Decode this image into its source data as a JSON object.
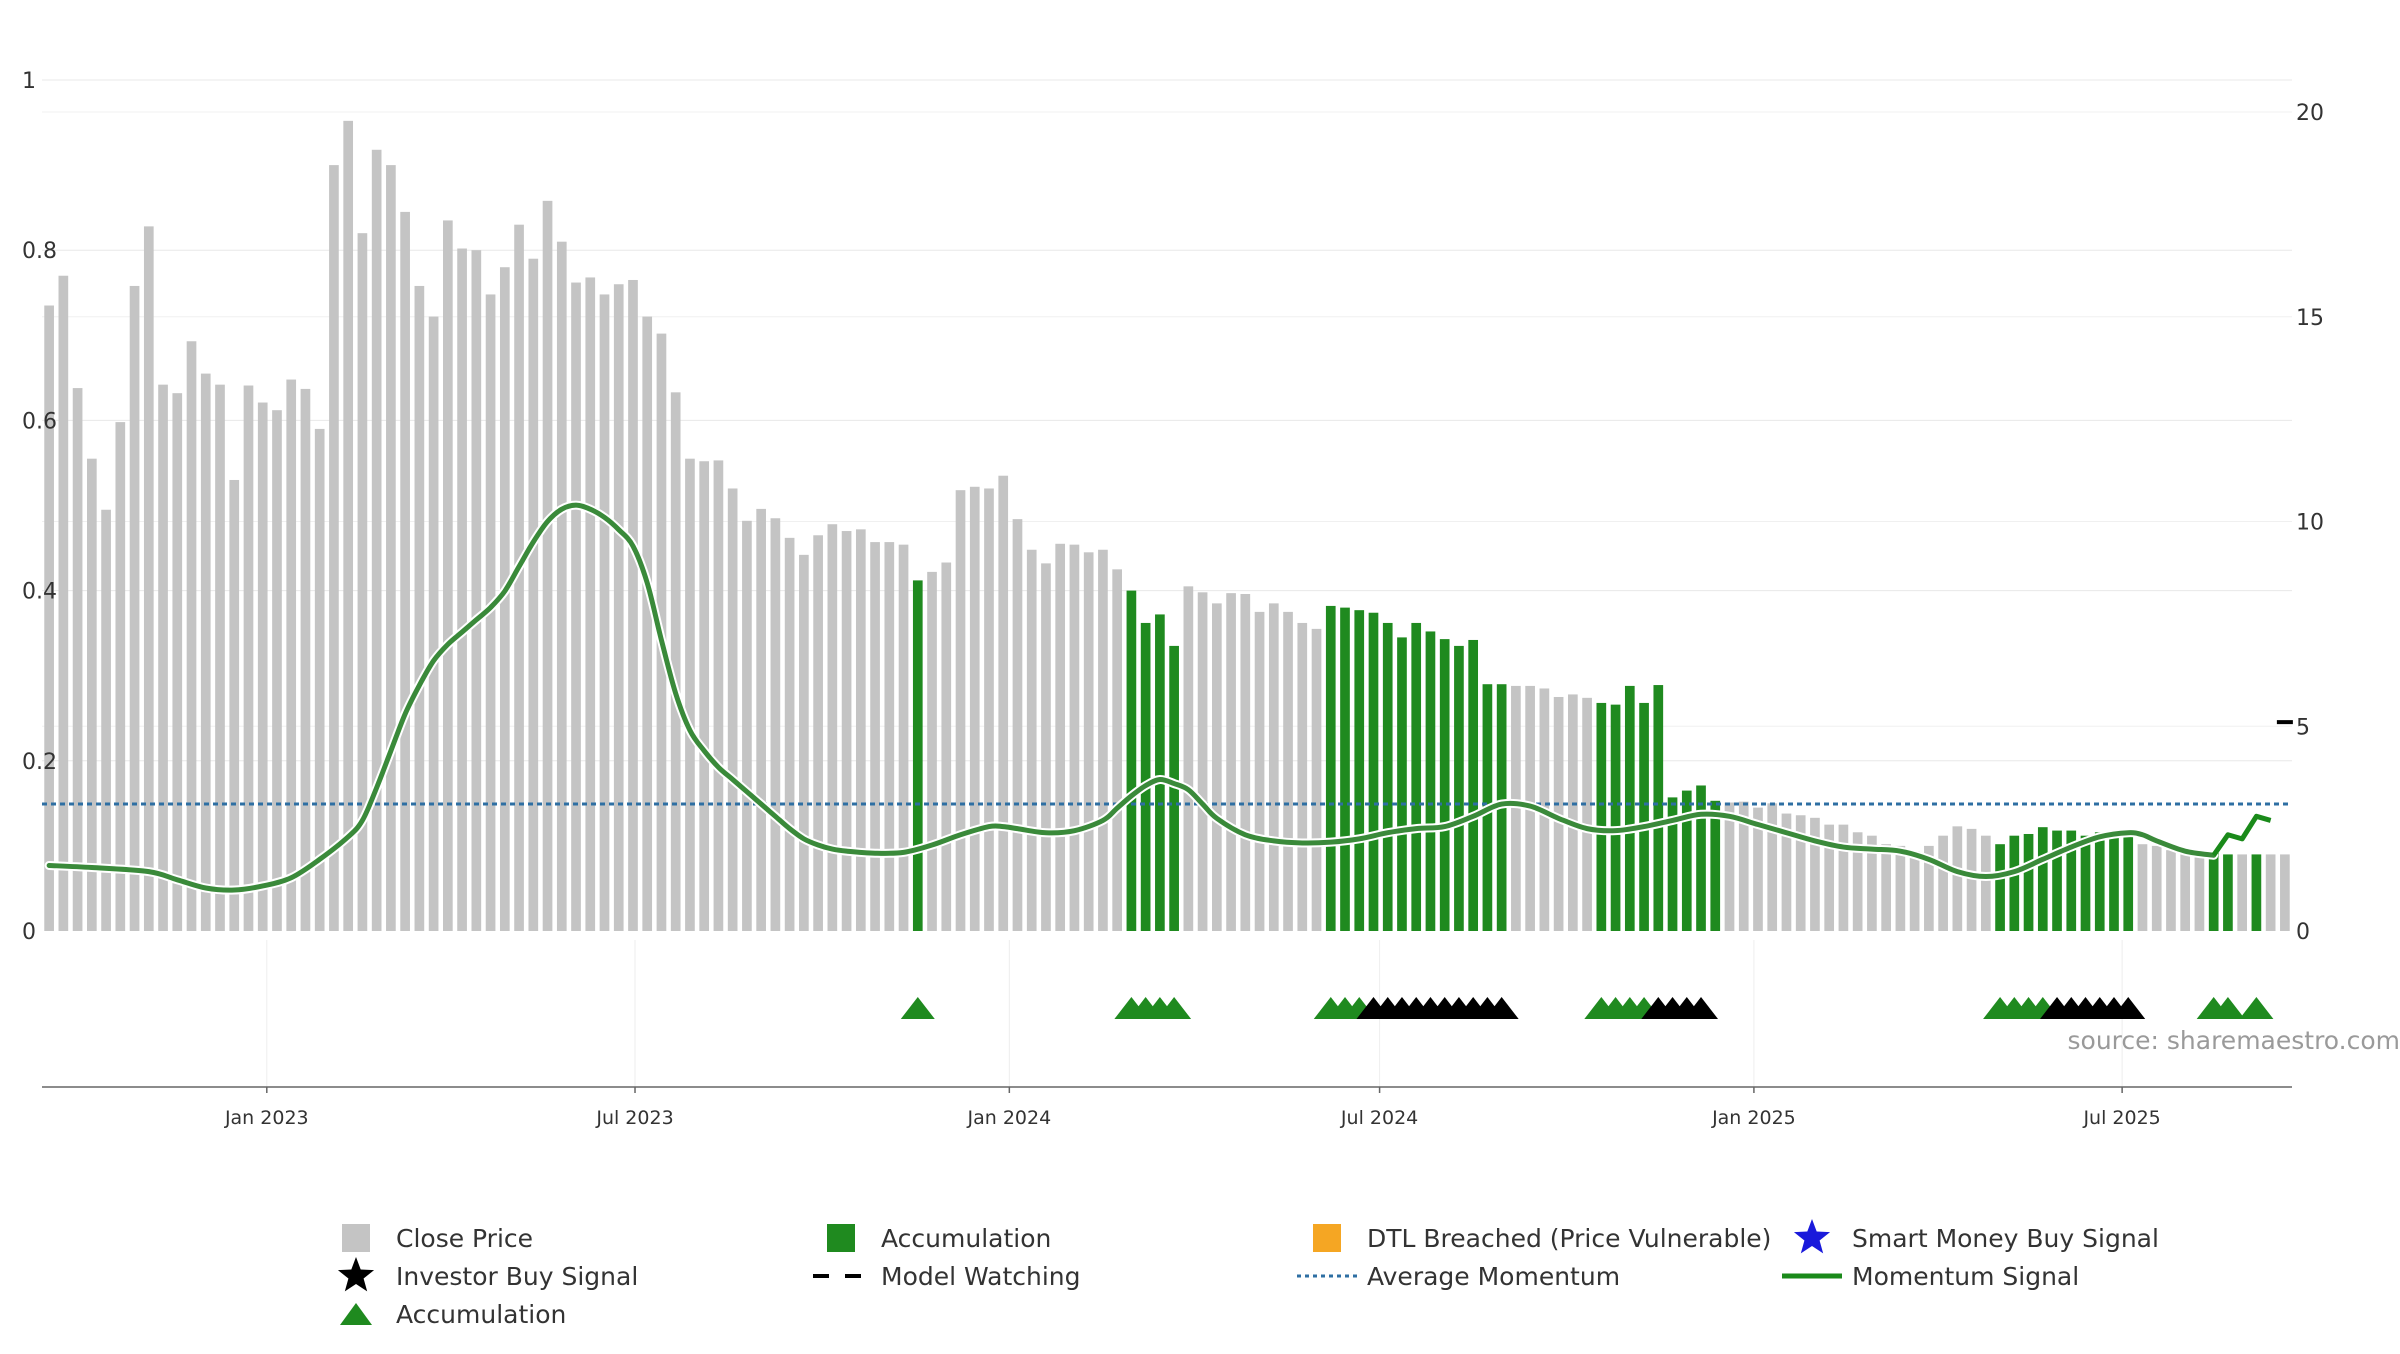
{
  "colors": {
    "close_price": "#c4c4c4",
    "accumulation": "#1f8a1f",
    "investor_signal": "#000000",
    "dtl_breached": "#f5a623",
    "smart_money": "#1a1adb",
    "average_momentum": "#2e6fa3",
    "momentum_line": "#3a8a3a",
    "momentum_signal": "#1a8a1a",
    "grid": "#e8e8e8"
  },
  "source": "source: sharemaestro.com",
  "legend": [
    {
      "label": "Close Price",
      "marker": "square",
      "color": "#c4c4c4"
    },
    {
      "label": "Accumulation",
      "marker": "square",
      "color": "#1f8a1f"
    },
    {
      "label": "DTL Breached (Price Vulnerable)",
      "marker": "square",
      "color": "#f5a623"
    },
    {
      "label": "Smart Money Buy Signal",
      "marker": "star",
      "color": "#1a1adb"
    },
    {
      "label": "Investor Buy Signal",
      "marker": "star",
      "color": "#000000"
    },
    {
      "label": "Model Watching",
      "marker": "dash",
      "color": "#000000"
    },
    {
      "label": "Average Momentum",
      "marker": "dotted-line",
      "color": "#2e6fa3"
    },
    {
      "label": "Momentum Signal",
      "marker": "line",
      "color": "#1a8a1a"
    },
    {
      "label": "Accumulation",
      "marker": "triangle",
      "color": "#1f8a1f"
    }
  ],
  "chart_data": {
    "type": "bar",
    "left_axis": {
      "ticks": [
        0,
        0.2,
        0.4,
        0.6,
        0.8,
        1
      ],
      "labels": [
        "0",
        "0.2",
        "0.4",
        "0.6",
        "0.8",
        "1"
      ],
      "range": [
        0,
        1
      ]
    },
    "right_axis": {
      "ticks": [
        0,
        5,
        10,
        15,
        20
      ],
      "labels": [
        "0",
        "5",
        "10",
        "15",
        "20"
      ],
      "range": [
        0,
        20
      ]
    },
    "x_axis": {
      "ticks": [
        "2023-01-01",
        "2023-07-01",
        "2024-01-01",
        "2024-07-01",
        "2025-01-01",
        "2025-07-01"
      ],
      "labels": [
        "Jan 2023",
        "Jul 2023",
        "Jan 2024",
        "Jul 2024",
        "Jan 2025",
        "Jul 2025"
      ]
    },
    "weeks": {
      "start": "2022-09-16",
      "interval_days": 7,
      "count": 158
    },
    "close_price": [
      0.735,
      0.77,
      0.638,
      0.555,
      0.495,
      0.598,
      0.758,
      0.828,
      0.642,
      0.632,
      0.693,
      0.655,
      0.642,
      0.53,
      0.641,
      0.621,
      0.612,
      0.648,
      0.637,
      0.59,
      0.9,
      0.952,
      0.82,
      0.918,
      0.9,
      0.845,
      0.758,
      0.722,
      0.835,
      0.802,
      0.8,
      0.748,
      0.78,
      0.83,
      0.79,
      0.858,
      0.81,
      0.762,
      0.768,
      0.748,
      0.76,
      0.765,
      0.722,
      0.702,
      0.633,
      0.555,
      0.552,
      0.553,
      0.52,
      0.482,
      0.496,
      0.485,
      0.462,
      0.442,
      0.465,
      0.478,
      0.47,
      0.472,
      0.457,
      0.457,
      0.454,
      0.412,
      0.422,
      0.433,
      0.518,
      0.522,
      0.52,
      0.535,
      0.484,
      0.448,
      0.432,
      0.455,
      0.454,
      0.445,
      0.448,
      0.425,
      0.4,
      0.362,
      0.372,
      0.335,
      0.405,
      0.398,
      0.385,
      0.397,
      0.396,
      0.375,
      0.385,
      0.375,
      0.362,
      0.355,
      0.382,
      0.38,
      0.377,
      0.374,
      0.362,
      0.345,
      0.362,
      0.352,
      0.343,
      0.335,
      0.342,
      0.29,
      0.29,
      0.288,
      0.288,
      0.285,
      0.275,
      0.278,
      0.274,
      0.268,
      0.266,
      0.288,
      0.268,
      0.289,
      0.157,
      0.165,
      0.171,
      0.153,
      0.151,
      0.152,
      0.145,
      0.15,
      0.138,
      0.136,
      0.133,
      0.125,
      0.125,
      0.116,
      0.112,
      0.102,
      0.1,
      0.094,
      0.1,
      0.112,
      0.123,
      0.12,
      0.112,
      0.102,
      0.112,
      0.114,
      0.122,
      0.118,
      0.118,
      0.112,
      0.116,
      0.118,
      0.114,
      0.102,
      0.1,
      0.095,
      0.092,
      0.092,
      0.093,
      0.09,
      0.09,
      0.09,
      0.09,
      0.09
    ],
    "accumulation_weeks": [
      61,
      76,
      77,
      78,
      79,
      90,
      91,
      92,
      93,
      94,
      95,
      96,
      97,
      98,
      99,
      100,
      101,
      102,
      109,
      110,
      111,
      112,
      113,
      114,
      115,
      116,
      117,
      137,
      138,
      139,
      140,
      141,
      142,
      143,
      144,
      145,
      146,
      152,
      153,
      155
    ],
    "accumulation_triangle_weeks": [
      61,
      76,
      77,
      78,
      79,
      90,
      91,
      92,
      109,
      110,
      111,
      112,
      137,
      138,
      139,
      140,
      152,
      153,
      155
    ],
    "investor_signal_weeks": [
      93,
      94,
      95,
      96,
      97,
      98,
      99,
      100,
      101,
      102,
      113,
      114,
      115,
      116,
      141,
      142,
      143,
      144,
      145,
      146
    ],
    "momentum_line": {
      "points": [
        [
          0,
          1.6
        ],
        [
          3,
          1.55
        ],
        [
          7,
          1.45
        ],
        [
          9,
          1.25
        ],
        [
          11,
          1.05
        ],
        [
          13,
          1.0
        ],
        [
          15,
          1.1
        ],
        [
          17,
          1.3
        ],
        [
          19,
          1.75
        ],
        [
          21,
          2.3
        ],
        [
          22,
          2.7
        ],
        [
          23,
          3.5
        ],
        [
          24,
          4.4
        ],
        [
          25,
          5.3
        ],
        [
          26,
          6.0
        ],
        [
          27,
          6.6
        ],
        [
          28,
          7.0
        ],
        [
          29,
          7.3
        ],
        [
          30,
          7.6
        ],
        [
          31,
          7.9
        ],
        [
          32,
          8.3
        ],
        [
          33,
          8.9
        ],
        [
          34,
          9.5
        ],
        [
          35,
          10.0
        ],
        [
          36,
          10.3
        ],
        [
          37,
          10.4
        ],
        [
          38,
          10.3
        ],
        [
          39,
          10.1
        ],
        [
          40,
          9.8
        ],
        [
          41,
          9.4
        ],
        [
          42,
          8.5
        ],
        [
          43,
          7.1
        ],
        [
          44,
          5.8
        ],
        [
          45,
          4.9
        ],
        [
          46,
          4.4
        ],
        [
          47,
          4.0
        ],
        [
          48,
          3.7
        ],
        [
          49,
          3.4
        ],
        [
          50,
          3.1
        ],
        [
          51,
          2.8
        ],
        [
          52,
          2.5
        ],
        [
          53,
          2.25
        ],
        [
          54,
          2.1
        ],
        [
          55,
          2.0
        ],
        [
          56,
          1.95
        ],
        [
          58,
          1.9
        ],
        [
          60,
          1.92
        ],
        [
          62,
          2.1
        ],
        [
          64,
          2.35
        ],
        [
          66,
          2.55
        ],
        [
          67,
          2.55
        ],
        [
          68,
          2.5
        ],
        [
          70,
          2.4
        ],
        [
          72,
          2.45
        ],
        [
          74,
          2.7
        ],
        [
          75,
          3.0
        ],
        [
          76,
          3.3
        ],
        [
          77,
          3.55
        ],
        [
          78,
          3.7
        ],
        [
          79,
          3.6
        ],
        [
          80,
          3.45
        ],
        [
          81,
          3.1
        ],
        [
          82,
          2.75
        ],
        [
          84,
          2.35
        ],
        [
          86,
          2.2
        ],
        [
          88,
          2.15
        ],
        [
          90,
          2.17
        ],
        [
          92,
          2.25
        ],
        [
          94,
          2.4
        ],
        [
          96,
          2.5
        ],
        [
          98,
          2.55
        ],
        [
          100,
          2.8
        ],
        [
          102,
          3.1
        ],
        [
          104,
          3.05
        ],
        [
          106,
          2.75
        ],
        [
          108,
          2.5
        ],
        [
          110,
          2.45
        ],
        [
          112,
          2.55
        ],
        [
          114,
          2.7
        ],
        [
          116,
          2.85
        ],
        [
          118,
          2.8
        ],
        [
          120,
          2.6
        ],
        [
          122,
          2.4
        ],
        [
          124,
          2.2
        ],
        [
          126,
          2.05
        ],
        [
          128,
          2.0
        ],
        [
          130,
          1.95
        ],
        [
          132,
          1.75
        ],
        [
          134,
          1.45
        ],
        [
          136,
          1.33
        ],
        [
          138,
          1.45
        ],
        [
          140,
          1.75
        ],
        [
          142,
          2.05
        ],
        [
          144,
          2.3
        ],
        [
          146,
          2.4
        ],
        [
          147,
          2.35
        ],
        [
          148,
          2.2
        ],
        [
          150,
          1.95
        ],
        [
          152,
          1.85
        ]
      ],
      "signal_points": [
        [
          152,
          1.85
        ],
        [
          153,
          2.35
        ],
        [
          154,
          2.25
        ],
        [
          155,
          2.8
        ],
        [
          156,
          2.7
        ]
      ]
    },
    "average_momentum": 3.1,
    "model_watching": {
      "week": 157,
      "value": 5.1
    }
  }
}
